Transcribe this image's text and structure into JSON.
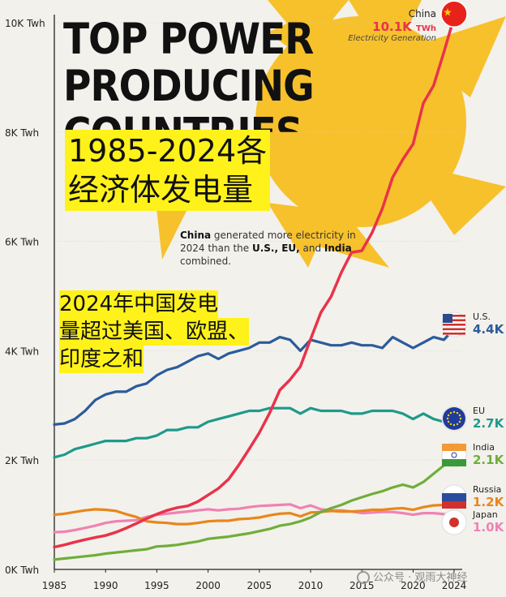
{
  "overlay": {
    "title_lines": [
      "TOP POWER",
      "PRODUCING",
      "COUNTRIES"
    ],
    "cn_title_line1": "1985-2024各",
    "cn_title_line2": "经济体发电量",
    "cn_note_line1": "2024年中国发电",
    "cn_note_line2": "量超过美国、欧盟、",
    "cn_note_line3": "印度之和",
    "callout_bold1": "China",
    "callout_text1": " generated more electricity in 2024 than the ",
    "callout_bold2": "U.S., EU,",
    "callout_text2": " and ",
    "callout_bold3": "India",
    "callout_text3": " combined.",
    "china_tag": "China",
    "china_value": "10.1K",
    "china_unit": "TWh",
    "china_caption": "Electricity Generation",
    "watermark": "公众号 · 观雨大神经"
  },
  "colors": {
    "China": "#e8334a",
    "U.S.": "#2b5c9a",
    "EU": "#1d9a8a",
    "India": "#6fae3a",
    "Russia": "#e8861c",
    "Japan": "#ef82b3",
    "sun": "#f7c12c",
    "highlight": "#fff21a"
  },
  "chart_data": {
    "type": "line",
    "title": "Top Power Producing Countries",
    "ylabel": "TWh",
    "xlabel": "",
    "ylim": [
      0,
      10000
    ],
    "xlim": [
      1985,
      2024
    ],
    "grid": true,
    "y_ticks": [
      0,
      2000,
      4000,
      6000,
      8000,
      10000
    ],
    "y_tick_labels": [
      "0K Twh",
      "2K Twh",
      "4K Twh",
      "6K Twh",
      "8K Twh",
      "10K Twh"
    ],
    "x_ticks": [
      1985,
      1990,
      1995,
      2000,
      2005,
      2010,
      2015,
      2020,
      2024
    ],
    "x_tick_labels": [
      "1985",
      "1990",
      "1995",
      "2000",
      "2005",
      "2010",
      "2015",
      "2020",
      "2024"
    ],
    "x": [
      1985,
      1986,
      1987,
      1988,
      1989,
      1990,
      1991,
      1992,
      1993,
      1994,
      1995,
      1996,
      1997,
      1998,
      1999,
      2000,
      2001,
      2002,
      2003,
      2004,
      2005,
      2006,
      2007,
      2008,
      2009,
      2010,
      2011,
      2012,
      2013,
      2014,
      2015,
      2016,
      2017,
      2018,
      2019,
      2020,
      2021,
      2022,
      2023,
      2024
    ],
    "series": [
      {
        "name": "China",
        "end_label": "10.1K",
        "values": [
          410,
          450,
          500,
          545,
          585,
          620,
          680,
          755,
          840,
          930,
          1010,
          1080,
          1130,
          1160,
          1240,
          1360,
          1480,
          1650,
          1910,
          2200,
          2500,
          2860,
          3280,
          3470,
          3710,
          4210,
          4700,
          4990,
          5430,
          5800,
          5830,
          6160,
          6600,
          7170,
          7500,
          7780,
          8530,
          8850,
          9460,
          10100
        ]
      },
      {
        "name": "U.S.",
        "end_label": "4.4K",
        "values": [
          2650,
          2670,
          2750,
          2900,
          3100,
          3200,
          3250,
          3250,
          3350,
          3400,
          3550,
          3650,
          3700,
          3800,
          3900,
          3950,
          3850,
          3950,
          4000,
          4050,
          4150,
          4150,
          4250,
          4200,
          4000,
          4200,
          4150,
          4100,
          4100,
          4150,
          4100,
          4100,
          4050,
          4250,
          4150,
          4050,
          4150,
          4250,
          4200,
          4400
        ]
      },
      {
        "name": "EU",
        "end_label": "2.7K",
        "values": [
          2050,
          2100,
          2200,
          2250,
          2300,
          2350,
          2350,
          2350,
          2400,
          2400,
          2450,
          2550,
          2550,
          2600,
          2600,
          2700,
          2750,
          2800,
          2850,
          2900,
          2900,
          2950,
          2950,
          2950,
          2850,
          2950,
          2900,
          2900,
          2900,
          2850,
          2850,
          2900,
          2900,
          2900,
          2850,
          2750,
          2850,
          2750,
          2700,
          2700
        ]
      },
      {
        "name": "India",
        "end_label": "2.1K",
        "values": [
          180,
          200,
          220,
          240,
          260,
          290,
          310,
          330,
          350,
          370,
          420,
          430,
          450,
          480,
          510,
          560,
          580,
          600,
          630,
          660,
          700,
          740,
          800,
          830,
          880,
          950,
          1050,
          1120,
          1180,
          1260,
          1320,
          1380,
          1430,
          1500,
          1550,
          1500,
          1600,
          1750,
          1900,
          2100
        ]
      },
      {
        "name": "Russia",
        "end_label": "1.2K",
        "values": [
          1000,
          1020,
          1050,
          1080,
          1100,
          1090,
          1070,
          1010,
          960,
          880,
          860,
          850,
          830,
          830,
          850,
          880,
          890,
          890,
          920,
          930,
          950,
          990,
          1020,
          1030,
          970,
          1040,
          1050,
          1070,
          1060,
          1060,
          1070,
          1090,
          1090,
          1110,
          1120,
          1090,
          1140,
          1170,
          1180,
          1200
        ]
      },
      {
        "name": "Japan",
        "end_label": "1.0K",
        "values": [
          680,
          690,
          720,
          760,
          800,
          850,
          880,
          890,
          900,
          960,
          1000,
          1020,
          1040,
          1060,
          1080,
          1100,
          1080,
          1100,
          1110,
          1140,
          1160,
          1170,
          1180,
          1190,
          1120,
          1170,
          1100,
          1080,
          1080,
          1060,
          1030,
          1040,
          1050,
          1050,
          1030,
          1000,
          1030,
          1030,
          1010,
          1000
        ]
      }
    ]
  }
}
